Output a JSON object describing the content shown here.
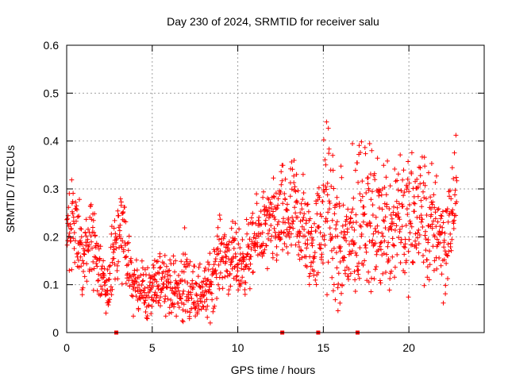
{
  "chart_data": {
    "type": "scatter",
    "title": "Day 230 of 2024, SRMTID for receiver salu",
    "xlabel": "GPS time / hours",
    "ylabel": "SRMTID / TECUs",
    "xlim": [
      0,
      24.4
    ],
    "ylim": [
      0,
      0.6
    ],
    "x_ticks": [
      0,
      5,
      10,
      15,
      20
    ],
    "x_tick_labels": [
      "0",
      "5",
      "10",
      "15",
      "20"
    ],
    "y_ticks": [
      0,
      0.1,
      0.2,
      0.3,
      0.4,
      0.5,
      0.6
    ],
    "y_tick_labels": [
      "0",
      "0.1",
      "0.2",
      "0.3",
      "0.4",
      "0.5",
      "0.6"
    ],
    "grid": true,
    "marker": "plus",
    "color": "#ff0000",
    "gap_markers_x": [
      2.9,
      12.6,
      14.7,
      17.0
    ],
    "series": [
      {
        "name": "SRMTID",
        "description": "approximate trend of dense point cloud (x hours, y TECU)",
        "x": [
          0.0,
          0.3,
          0.6,
          0.9,
          1.2,
          1.5,
          1.8,
          2.1,
          2.4,
          2.7,
          3.0,
          3.3,
          3.6,
          3.9,
          4.2,
          4.5,
          4.8,
          5.1,
          5.4,
          5.7,
          6.0,
          6.3,
          6.6,
          6.9,
          7.2,
          7.5,
          7.8,
          8.1,
          8.4,
          8.7,
          9.0,
          9.3,
          9.6,
          9.9,
          10.2,
          10.5,
          10.8,
          11.1,
          11.4,
          11.7,
          12.0,
          12.3,
          12.6,
          12.9,
          13.2,
          13.5,
          13.8,
          14.1,
          14.4,
          14.7,
          15.0,
          15.3,
          15.6,
          15.9,
          16.2,
          16.5,
          16.8,
          17.1,
          17.4,
          17.7,
          18.0,
          18.3,
          18.6,
          18.9,
          19.2,
          19.5,
          19.8,
          20.1,
          20.4,
          20.7,
          21.0,
          21.3,
          21.6,
          21.9,
          22.2,
          22.5,
          22.8
        ],
        "y": [
          0.21,
          0.24,
          0.2,
          0.16,
          0.19,
          0.2,
          0.14,
          0.11,
          0.09,
          0.14,
          0.2,
          0.22,
          0.13,
          0.1,
          0.1,
          0.09,
          0.08,
          0.09,
          0.11,
          0.12,
          0.1,
          0.09,
          0.08,
          0.11,
          0.09,
          0.08,
          0.09,
          0.08,
          0.1,
          0.14,
          0.17,
          0.16,
          0.15,
          0.15,
          0.14,
          0.16,
          0.17,
          0.2,
          0.22,
          0.21,
          0.22,
          0.23,
          0.24,
          0.23,
          0.25,
          0.24,
          0.22,
          0.19,
          0.17,
          0.21,
          0.25,
          0.26,
          0.22,
          0.16,
          0.19,
          0.18,
          0.2,
          0.25,
          0.28,
          0.24,
          0.21,
          0.23,
          0.24,
          0.22,
          0.25,
          0.27,
          0.23,
          0.22,
          0.24,
          0.26,
          0.22,
          0.21,
          0.24,
          0.2,
          0.18,
          0.25,
          0.3
        ],
        "spread": [
          0.05,
          0.06,
          0.06,
          0.05,
          0.05,
          0.06,
          0.05,
          0.04,
          0.04,
          0.06,
          0.08,
          0.07,
          0.05,
          0.04,
          0.04,
          0.04,
          0.04,
          0.04,
          0.04,
          0.04,
          0.04,
          0.04,
          0.05,
          0.06,
          0.05,
          0.04,
          0.04,
          0.04,
          0.05,
          0.05,
          0.05,
          0.05,
          0.05,
          0.05,
          0.05,
          0.05,
          0.05,
          0.05,
          0.06,
          0.06,
          0.06,
          0.07,
          0.07,
          0.08,
          0.08,
          0.08,
          0.08,
          0.07,
          0.06,
          0.08,
          0.11,
          0.13,
          0.12,
          0.1,
          0.09,
          0.1,
          0.12,
          0.13,
          0.12,
          0.1,
          0.09,
          0.1,
          0.1,
          0.1,
          0.11,
          0.11,
          0.1,
          0.1,
          0.1,
          0.1,
          0.1,
          0.09,
          0.09,
          0.08,
          0.08,
          0.08,
          0.07
        ]
      }
    ]
  }
}
